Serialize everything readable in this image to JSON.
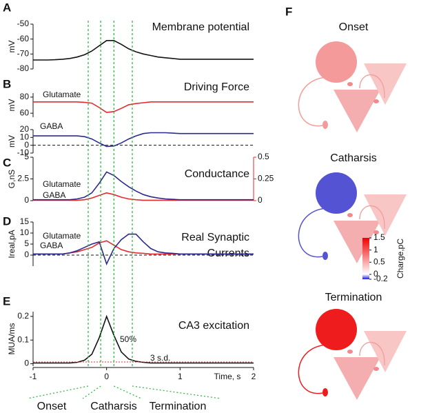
{
  "chart_data": [
    {
      "type": "line",
      "letter": "A",
      "title": "Membrane potential",
      "ylabel": "mV",
      "x": [
        -1.0,
        -0.9,
        -0.8,
        -0.7,
        -0.6,
        -0.5,
        -0.4,
        -0.3,
        -0.2,
        -0.1,
        0.0,
        0.1,
        0.2,
        0.3,
        0.4,
        0.5,
        0.6,
        0.7,
        0.8,
        0.9,
        1.0,
        1.1,
        1.2,
        1.3,
        1.4,
        1.5,
        1.6,
        1.7,
        1.8,
        1.9,
        2.0
      ],
      "xlim": [
        -1,
        2
      ],
      "ylim": [
        -80,
        -50
      ],
      "yticks": [
        -50,
        -60,
        -70,
        -80
      ],
      "series": [
        {
          "color": "#111111",
          "values": [
            -74,
            -74,
            -74,
            -73.8,
            -73.5,
            -73,
            -72,
            -70.5,
            -68,
            -64.5,
            -61,
            -61,
            -63.5,
            -66.5,
            -68.5,
            -70,
            -71,
            -72,
            -72.5,
            -73,
            -73.5,
            -73.5,
            -73.5,
            -73.5,
            -73.5,
            -73.5,
            -73.5,
            -73.5,
            -73.5,
            -73.5,
            -73.5
          ]
        }
      ]
    },
    {
      "type": "line",
      "letter": "B",
      "title": "Driving Force",
      "ylabel": "mV",
      "x": [
        -1.0,
        -0.9,
        -0.8,
        -0.7,
        -0.6,
        -0.5,
        -0.4,
        -0.3,
        -0.2,
        -0.1,
        0.0,
        0.1,
        0.2,
        0.3,
        0.4,
        0.5,
        0.6,
        0.7,
        0.8,
        0.9,
        1.0,
        1.1,
        1.2,
        1.3,
        1.4,
        1.5,
        1.6,
        1.7,
        1.8,
        1.9,
        2.0
      ],
      "xlim": [
        -1,
        2
      ],
      "ylim": [
        55,
        85
      ],
      "yticks": [
        60,
        80
      ],
      "series": [
        {
          "name": "Glutamate",
          "color": "#e8282b",
          "values": [
            74,
            74,
            74,
            74,
            74,
            74,
            74,
            73.5,
            72.5,
            67,
            61,
            62,
            66,
            70.5,
            72,
            73,
            74,
            74,
            74,
            74,
            74,
            74,
            74,
            74,
            74,
            74,
            74,
            74,
            74,
            74,
            74
          ]
        }
      ]
    },
    {
      "type": "line",
      "ylabel": "mV",
      "zero_line": true,
      "x": [
        -1.0,
        -0.9,
        -0.8,
        -0.7,
        -0.6,
        -0.5,
        -0.4,
        -0.3,
        -0.2,
        -0.1,
        0.0,
        0.1,
        0.2,
        0.3,
        0.4,
        0.5,
        0.6,
        0.7,
        0.8,
        0.9,
        1.0,
        1.1,
        1.2,
        1.3,
        1.4,
        1.5,
        1.6,
        1.7,
        1.8,
        1.9,
        2.0
      ],
      "xlim": [
        -1,
        2
      ],
      "ylim": [
        -10,
        20
      ],
      "yticks": [
        20,
        10,
        0,
        -10
      ],
      "series": [
        {
          "name": "GABA",
          "color": "#2b2a8c",
          "values": [
            12,
            12,
            12,
            12,
            12,
            12,
            12,
            11,
            8,
            3,
            -1.5,
            -1,
            3,
            8,
            12,
            15,
            16,
            16,
            16,
            15.5,
            15,
            15,
            15,
            15,
            15,
            15,
            15,
            15,
            15,
            15,
            15
          ]
        }
      ]
    },
    {
      "type": "line",
      "letter": "C",
      "title": "Conductance",
      "ylabel": "G,nS",
      "x": [
        -1.0,
        -0.9,
        -0.8,
        -0.7,
        -0.6,
        -0.5,
        -0.4,
        -0.3,
        -0.2,
        -0.1,
        0.0,
        0.1,
        0.2,
        0.3,
        0.4,
        0.5,
        0.6,
        0.7,
        0.8,
        0.9,
        1.0,
        1.1,
        1.2,
        1.3,
        1.4,
        1.5,
        1.6,
        1.7,
        1.8,
        1.9,
        2.0
      ],
      "xlim": [
        -1,
        2
      ],
      "ylim": [
        0,
        5
      ],
      "yticks": [
        0,
        {
          "value": 2.5,
          "label": "2.5"
        },
        5
      ],
      "y2lim": [
        0,
        0.5
      ],
      "y2ticks": [
        0,
        0.25,
        0.5
      ],
      "series": [
        {
          "name": "Glutamate",
          "color": "#e8282b",
          "axis": "y2",
          "values": [
            0.005,
            0.005,
            0.005,
            0.005,
            0.005,
            0.005,
            0.005,
            0.01,
            0.03,
            0.06,
            0.09,
            0.07,
            0.04,
            0.02,
            0.01,
            0.005,
            0.005,
            0.005,
            0.005,
            0.005,
            0.005,
            0.005,
            0.005,
            0.005,
            0.005,
            0.005,
            0.005,
            0.005,
            0.005,
            0.005,
            0.005
          ]
        },
        {
          "name": "GABA",
          "color": "#2b2a8c",
          "values": [
            0.1,
            0.1,
            0.1,
            0.1,
            0.1,
            0.1,
            0.2,
            0.4,
            0.9,
            2,
            3.3,
            2.9,
            2.2,
            1.6,
            1.1,
            0.7,
            0.45,
            0.3,
            0.2,
            0.15,
            0.1,
            0.1,
            0.1,
            0.1,
            0.1,
            0.1,
            0.1,
            0.1,
            0.1,
            0.1,
            0.1
          ]
        }
      ]
    },
    {
      "type": "line",
      "letter": "D",
      "title": [
        "Real Synaptic",
        "Currents"
      ],
      "ylabel": "Ireal,pA",
      "zero_line": true,
      "x": [
        -1.0,
        -0.9,
        -0.8,
        -0.7,
        -0.6,
        -0.5,
        -0.4,
        -0.3,
        -0.2,
        -0.1,
        0.0,
        0.1,
        0.2,
        0.3,
        0.4,
        0.5,
        0.6,
        0.7,
        0.8,
        0.9,
        1.0,
        1.1,
        1.2,
        1.3,
        1.4,
        1.5,
        1.6,
        1.7,
        1.8,
        1.9,
        2.0
      ],
      "xlim": [
        -1,
        2
      ],
      "ylim": [
        -5,
        15
      ],
      "yticks": [
        0,
        5,
        10,
        15
      ],
      "series": [
        {
          "name": "Glutamate",
          "color": "#e8282b",
          "values": [
            0.5,
            0.5,
            0.5,
            0.5,
            0.5,
            1,
            1.5,
            2.5,
            3.5,
            5.5,
            6.5,
            4.5,
            2.5,
            1.5,
            1,
            0.8,
            0.5,
            0.5,
            0.5,
            0.5,
            0.5,
            0.5,
            0.5,
            0.5,
            0.5,
            0.5,
            0.5,
            0.5,
            0.5,
            0.5,
            0.5
          ]
        },
        {
          "name": "GABA",
          "color": "#2b2a8c",
          "values": [
            0.5,
            0.5,
            0.5,
            0.5,
            0.5,
            1,
            2,
            3.5,
            5,
            6,
            -4,
            3,
            7,
            9.5,
            9.5,
            6,
            3,
            1.5,
            1,
            0.8,
            0.5,
            0.5,
            0.5,
            0.5,
            0.5,
            0.5,
            0.5,
            0.5,
            0.5,
            0.5,
            0.5
          ]
        }
      ]
    },
    {
      "type": "line",
      "letter": "E",
      "title": "CA3 excitation",
      "ylabel": "MUA/ms",
      "xlabel": "Time, s",
      "annotations": [
        "50%",
        "3 s.d."
      ],
      "x": [
        -1.0,
        -0.9,
        -0.8,
        -0.7,
        -0.6,
        -0.5,
        -0.4,
        -0.3,
        -0.2,
        -0.1,
        0.0,
        0.1,
        0.2,
        0.3,
        0.4,
        0.5,
        0.6,
        0.7,
        0.8,
        0.9,
        1.0,
        1.1,
        1.2,
        1.3,
        1.4,
        1.5,
        1.6,
        1.7,
        1.8,
        1.9,
        2.0
      ],
      "xlim": [
        -1,
        2
      ],
      "xticks": [
        -1,
        0,
        1,
        2
      ],
      "ylim": [
        -0.01,
        0.22
      ],
      "yticks": [
        0,
        0.1,
        0.2
      ],
      "series": [
        {
          "color": "#111111",
          "values": [
            0.003,
            0.003,
            0.003,
            0.003,
            0.003,
            0.003,
            0.006,
            0.015,
            0.04,
            0.11,
            0.2,
            0.12,
            0.05,
            0.02,
            0.01,
            0.006,
            0.003,
            0.003,
            0.003,
            0.003,
            0.003,
            0.003,
            0.003,
            0.003,
            0.003,
            0.003,
            0.003,
            0.003,
            0.003,
            0.003,
            0.003
          ]
        }
      ]
    }
  ],
  "phase_lines": [
    -0.25,
    -0.08,
    0.1,
    0.35
  ],
  "phases": [
    "Onset",
    "Catharsis",
    "Termination"
  ],
  "diagram": {
    "letter": "F",
    "states": [
      {
        "label": "Onset",
        "color": "#f59a9a"
      },
      {
        "label": "Catharsis",
        "color": "#5353d3"
      },
      {
        "label": "Termination",
        "color": "#ee1c1c"
      }
    ],
    "colorbar": {
      "label": "Charge,pC",
      "lim": [
        -0.2,
        1.5
      ],
      "ticks": [
        {
          "value": 1.5,
          "label": "1.5"
        },
        1,
        0.5,
        0,
        -0.2
      ]
    }
  }
}
